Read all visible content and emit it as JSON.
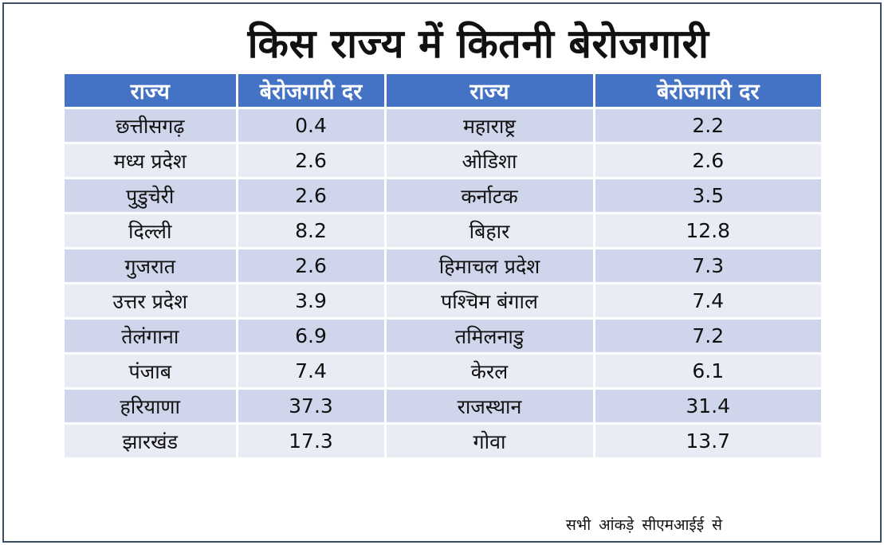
{
  "title": "किस राज्य में कितनी बेरोजगारी",
  "source_note": "सभी आंकड़े सीएमआईई से",
  "chart_data": {
    "type": "table",
    "title": "किस राज्य में कितनी बेरोजगारी",
    "columns": [
      "राज्य",
      "बेरोजगारी दर",
      "राज्य",
      "बेरोजगारी दर"
    ],
    "rows": [
      [
        "छत्तीसगढ़",
        "0.4",
        "महाराष्ट्र",
        "2.2"
      ],
      [
        "मध्य प्रदेश",
        "2.6",
        "ओडिशा",
        "2.6"
      ],
      [
        "पुडुचेरी",
        "2.6",
        "कर्नाटक",
        "3.5"
      ],
      [
        "दिल्ली",
        "8.2",
        "बिहार",
        "12.8"
      ],
      [
        "गुजरात",
        "2.6",
        "हिमाचल प्रदेश",
        "7.3"
      ],
      [
        "उत्तर प्रदेश",
        "3.9",
        "पश्चिम बंगाल",
        "7.4"
      ],
      [
        "तेलंगाना",
        "6.9",
        "तमिलनाडु",
        "7.2"
      ],
      [
        "पंजाब",
        "7.4",
        "केरल",
        "6.1"
      ],
      [
        "हरियाणा",
        "37.3",
        "राजस्थान",
        "31.4"
      ],
      [
        "झारखंड",
        "17.3",
        "गोवा",
        "13.7"
      ]
    ]
  },
  "colors": {
    "header_bg": "#4472c4",
    "row_odd": "#cfd5ea",
    "row_even": "#e9ebf5"
  }
}
